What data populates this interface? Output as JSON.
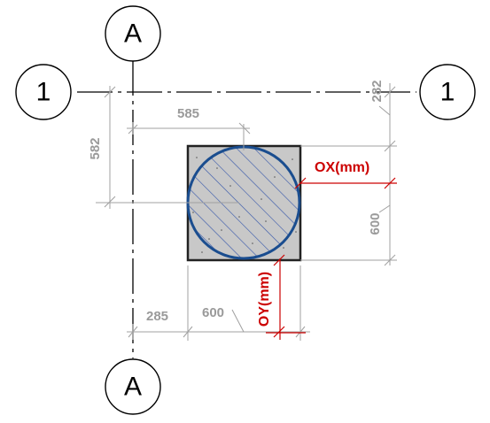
{
  "grid": {
    "vertical_axis_label": "A",
    "horizontal_axis_label": "1"
  },
  "dimensions": {
    "column_offset_x": "585",
    "column_offset_y": "582",
    "column_width": "600",
    "column_height": "600",
    "axis_gap_x": "285",
    "axis_gap_y": "282"
  },
  "offsets": {
    "ox_label": "OX(mm)",
    "oy_label": "OY(mm)"
  },
  "colors": {
    "circle_stroke": "#1a4d8f",
    "hatch": "#3355aa",
    "column_fill": "#c8c8c8",
    "dimension": "#a0a0a0",
    "offset": "#cc0000"
  }
}
